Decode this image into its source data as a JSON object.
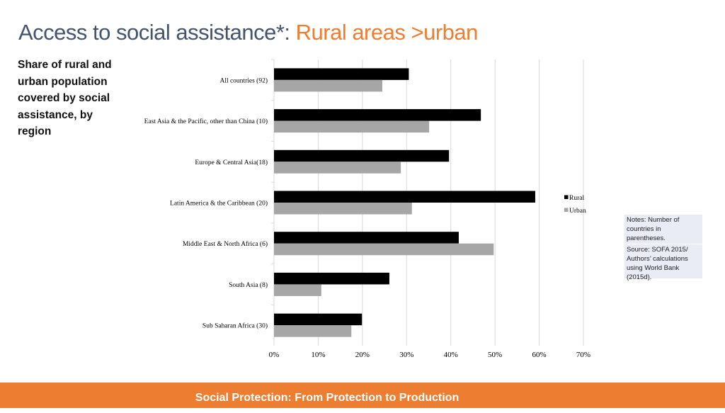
{
  "slide": {
    "title_main": "Access to social assistance*: ",
    "title_highlight": "Rural areas >urban",
    "subtitle": "Share of rural and urban population covered by social assistance, by region",
    "notes": [
      "Notes: Number of countries in parentheses.",
      "Source: SOFA 2015/ Authors’ calculations using World Bank (2015d)."
    ],
    "footer": "Social Protection: From Protection to Production"
  },
  "colors": {
    "rural": "#000000",
    "urban": "#a6a6a6",
    "grid": "#d9d9d9",
    "title": "#44546a",
    "accent": "#ed7d31"
  },
  "chart_data": {
    "type": "bar",
    "orientation": "horizontal",
    "categories": [
      "All countries (92)",
      "East Asia & the Pacific, other than China (10)",
      "Europe & Central Asia(18)",
      "Latin America & the Caribbean (20)",
      "Middle East & North Africa (6)",
      "South Asia (8)",
      "Sub Saharan Africa (30)"
    ],
    "series": [
      {
        "name": "Rural",
        "values": [
          30.5,
          46.8,
          39.6,
          59.1,
          41.8,
          26.1,
          19.9
        ]
      },
      {
        "name": "Urban",
        "values": [
          24.5,
          35.1,
          28.7,
          31.2,
          49.7,
          10.7,
          17.5
        ]
      }
    ],
    "xlim": [
      0,
      70
    ],
    "ticks": [
      0,
      10,
      20,
      30,
      40,
      50,
      60,
      70
    ],
    "tick_labels": [
      "0%",
      "10%",
      "20%",
      "30%",
      "40%",
      "50%",
      "60%",
      "70%"
    ],
    "grid": true,
    "legend": "right"
  }
}
